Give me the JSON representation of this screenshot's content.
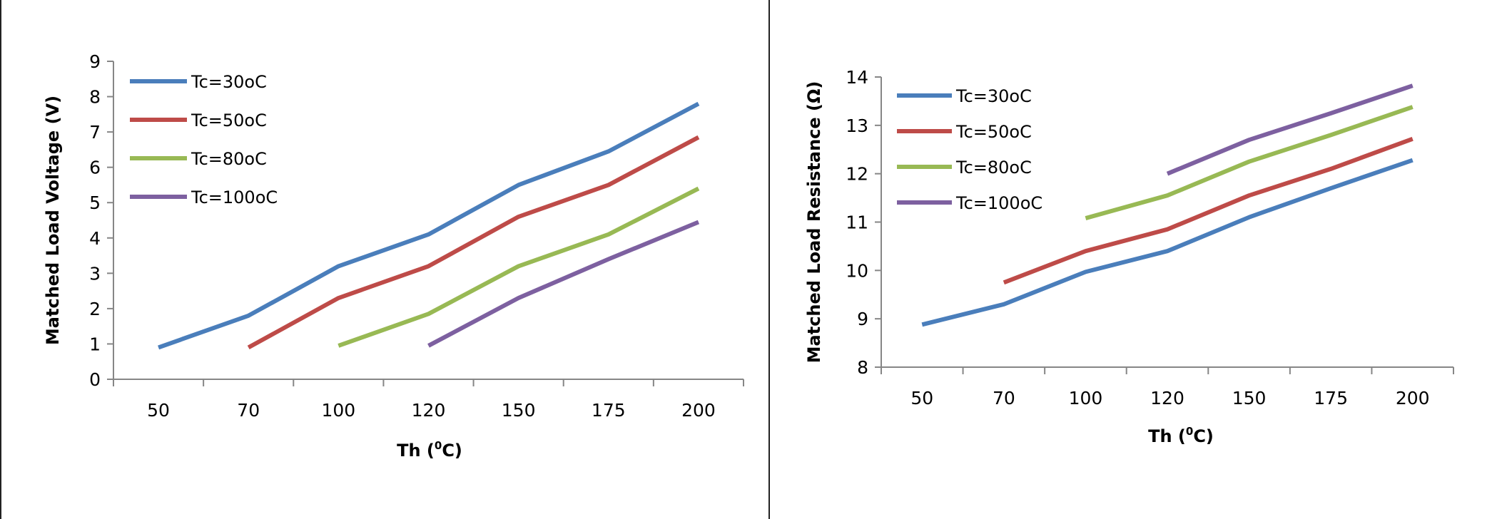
{
  "chart_data": [
    {
      "type": "line",
      "title": "",
      "xlabel": "Th (",
      "xlabel_sup": "0",
      "xlabel_suffix": "C)",
      "ylabel": "Matched Load Voltage (V)",
      "categories": [
        "50",
        "70",
        "100",
        "120",
        "150",
        "175",
        "200"
      ],
      "ylim": [
        0,
        9
      ],
      "yticks": [
        0,
        1,
        2,
        3,
        4,
        5,
        6,
        7,
        8,
        9
      ],
      "grid": false,
      "legend_position": "top-left",
      "series": [
        {
          "name": "Tc=30oC",
          "color": "#4a7ebb",
          "values": [
            0.9,
            1.8,
            3.2,
            4.1,
            5.5,
            6.45,
            7.8
          ]
        },
        {
          "name": "Tc=50oC",
          "color": "#be4b48",
          "values": [
            null,
            0.9,
            2.3,
            3.2,
            4.6,
            5.5,
            6.85
          ]
        },
        {
          "name": "Tc=80oC",
          "color": "#98b954",
          "values": [
            null,
            null,
            0.95,
            1.85,
            3.2,
            4.1,
            5.4
          ]
        },
        {
          "name": "Tc=100oC",
          "color": "#7d60a0",
          "values": [
            null,
            null,
            null,
            0.95,
            2.3,
            3.4,
            4.45
          ]
        }
      ]
    },
    {
      "type": "line",
      "title": "",
      "xlabel": "Th (",
      "xlabel_sup": "0",
      "xlabel_suffix": "C)",
      "ylabel": "Matched Load Resistance (Ω)",
      "categories": [
        "50",
        "70",
        "100",
        "120",
        "150",
        "175",
        "200"
      ],
      "ylim": [
        8,
        14
      ],
      "yticks": [
        8,
        9,
        10,
        11,
        12,
        13,
        14
      ],
      "grid": false,
      "legend_position": "top-left",
      "series": [
        {
          "name": "Tc=30oC",
          "color": "#4a7ebb",
          "values": [
            8.88,
            9.3,
            9.97,
            10.4,
            11.1,
            11.7,
            12.28
          ]
        },
        {
          "name": "Tc=50oC",
          "color": "#be4b48",
          "values": [
            null,
            9.75,
            10.4,
            10.85,
            11.55,
            12.1,
            12.72
          ]
        },
        {
          "name": "Tc=80oC",
          "color": "#98b954",
          "values": [
            null,
            null,
            11.08,
            11.55,
            12.25,
            12.8,
            13.38
          ]
        },
        {
          "name": "Tc=100oC",
          "color": "#7d60a0",
          "values": [
            null,
            null,
            null,
            12.0,
            12.7,
            13.25,
            13.82
          ]
        }
      ]
    }
  ]
}
